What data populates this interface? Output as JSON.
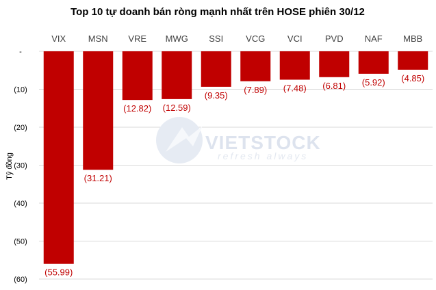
{
  "chart_data": {
    "type": "bar",
    "title": "Top 10 tự doanh bán ròng mạnh nhất trên HOSE phiên 30/12",
    "ylabel": "Tỷ đồng",
    "xlabel": "",
    "categories": [
      "VIX",
      "MSN",
      "VRE",
      "MWG",
      "SSI",
      "VCG",
      "VCI",
      "PVD",
      "NAF",
      "MBB"
    ],
    "values": [
      -55.99,
      -31.21,
      -12.82,
      -12.59,
      -9.35,
      -7.89,
      -7.48,
      -6.81,
      -5.92,
      -4.85
    ],
    "data_labels": [
      "(55.99)",
      "(31.21)",
      "(12.82)",
      "(12.59)",
      "(9.35)",
      "(7.89)",
      "(7.48)",
      "(6.81)",
      "(5.92)",
      "(4.85)"
    ],
    "yticks": [
      0,
      -10,
      -20,
      -30,
      -40,
      -50,
      -60
    ],
    "ytick_labels": [
      "-",
      "(10)",
      "(20)",
      "(30)",
      "(40)",
      "(50)",
      "(60)"
    ],
    "ylim": [
      -60,
      0
    ],
    "x_axis_position": "top",
    "grid": true,
    "legend": "none",
    "colors": {
      "bar": "#c00000",
      "data_label": "#c00000",
      "grid": "#d9d9d9",
      "axis_text": "#404040"
    }
  },
  "watermark": {
    "brand": "VIETSTOCK",
    "tagline": "refresh always"
  }
}
